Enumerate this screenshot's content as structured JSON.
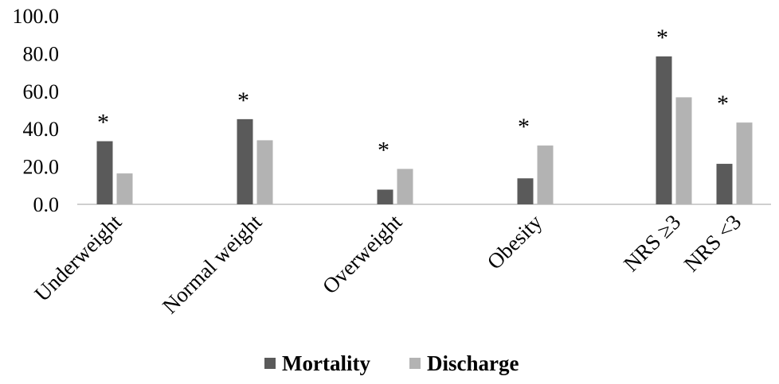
{
  "chart_data": {
    "type": "bar",
    "categories": [
      "Underweight",
      "Normal weight",
      "Overweight",
      "Obesity",
      "NRS ≥3",
      "NRS <3"
    ],
    "series": [
      {
        "name": "Mortality",
        "values": [
          33.5,
          45.2,
          7.8,
          13.8,
          78.5,
          21.5
        ],
        "color": "#5a5a5a"
      },
      {
        "name": "Discharge",
        "values": [
          16.4,
          34.0,
          18.8,
          31.2,
          56.8,
          43.4
        ],
        "color": "#b3b3b3"
      }
    ],
    "yticks": [
      "0.0",
      "20.0",
      "40.0",
      "60.0",
      "80.0",
      "100.0"
    ],
    "ylim": [
      0,
      100
    ],
    "annotations": [
      "*",
      "*",
      "*",
      "*",
      "*",
      "*"
    ],
    "grid": false,
    "legend_position": "bottom"
  }
}
